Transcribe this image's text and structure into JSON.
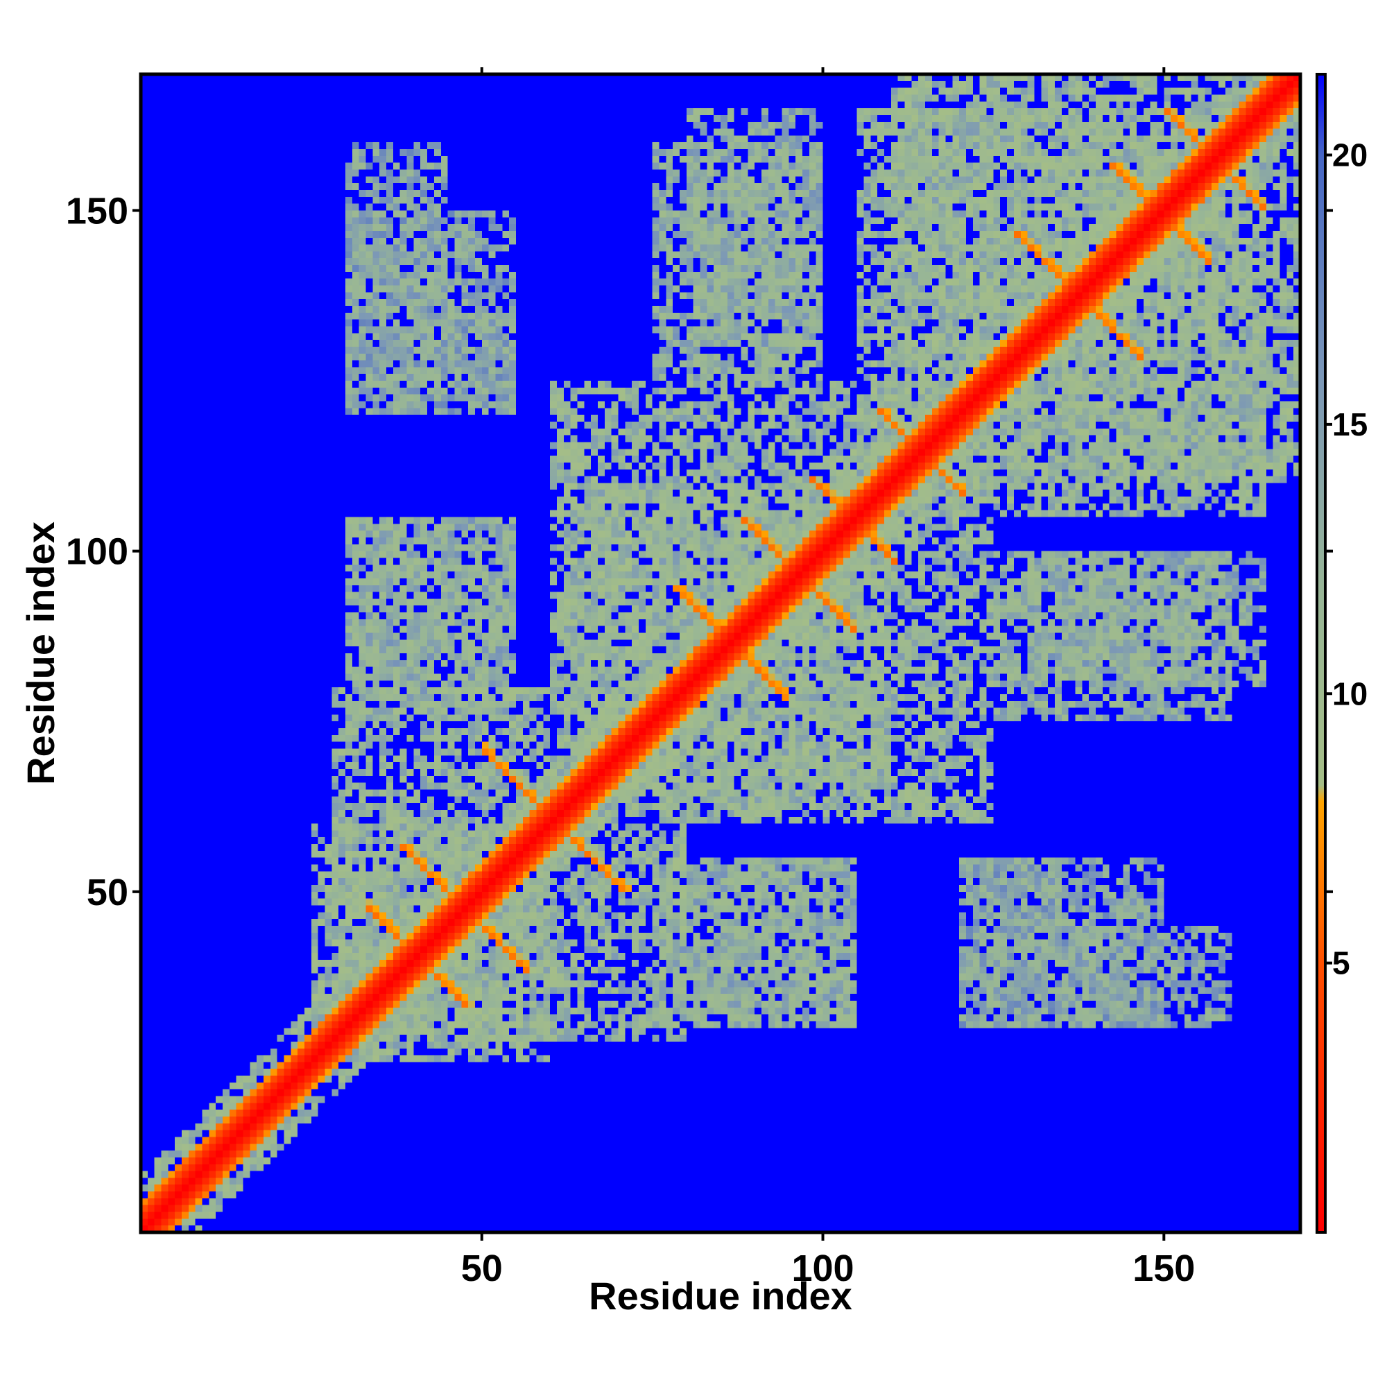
{
  "chart_data": {
    "type": "heatmap",
    "title": "",
    "xlabel": "Residue index",
    "ylabel": "Residue index",
    "xlim": [
      0,
      170
    ],
    "ylim": [
      0,
      170
    ],
    "x_ticks": [
      50,
      100,
      150
    ],
    "y_ticks": [
      50,
      100,
      150
    ],
    "x_tick_labels": [
      "50",
      "100",
      "150"
    ],
    "y_tick_labels": [
      "50",
      "100",
      "150"
    ],
    "colorbar": {
      "range": [
        0,
        21.5
      ],
      "ticks": [
        5,
        10,
        15,
        20
      ],
      "tick_labels": [
        "5",
        "10",
        "15",
        "20"
      ],
      "stops": [
        {
          "value": 0,
          "color": "#ff0000"
        },
        {
          "value": 5,
          "color": "#ff5000"
        },
        {
          "value": 8,
          "color": "#ffa500"
        },
        {
          "value": 8.3,
          "color": "#a5be87"
        },
        {
          "value": 12,
          "color": "#97b597"
        },
        {
          "value": 16,
          "color": "#7a96b8"
        },
        {
          "value": 20,
          "color": "#4666c4"
        },
        {
          "value": 21.5,
          "color": "#0000ff"
        }
      ],
      "background_color": "#0000ff"
    },
    "description_of_values": "pairwise residue distance (symmetric map); values at or above 21.5 shown as background",
    "diagonal": {
      "value": 0
    },
    "contact_features": [
      {
        "kind": "helix_band",
        "i_start": 40,
        "i_end": 47,
        "j_start": 33,
        "j_end": 40,
        "value": 6
      },
      {
        "kind": "helix_band",
        "i_start": 48,
        "i_end": 56,
        "j_start": 38,
        "j_end": 46,
        "value": 6
      },
      {
        "kind": "helix_band",
        "i_start": 62,
        "i_end": 70,
        "j_start": 50,
        "j_end": 58,
        "value": 6
      },
      {
        "kind": "helix_band",
        "i_start": 78,
        "i_end": 86,
        "j_start": 86,
        "j_end": 94,
        "value": 6
      },
      {
        "kind": "helix_band",
        "i_start": 88,
        "i_end": 96,
        "j_start": 96,
        "j_end": 104,
        "value": 6
      },
      {
        "kind": "helix_band",
        "i_start": 98,
        "i_end": 106,
        "j_start": 102,
        "j_end": 110,
        "value": 6
      },
      {
        "kind": "helix_band",
        "i_start": 108,
        "i_end": 116,
        "j_start": 112,
        "j_end": 120,
        "value": 6
      },
      {
        "kind": "helix_band",
        "i_start": 128,
        "i_end": 136,
        "j_start": 138,
        "j_end": 146,
        "value": 6
      },
      {
        "kind": "helix_band",
        "i_start": 142,
        "i_end": 150,
        "j_start": 148,
        "j_end": 156,
        "value": 6
      },
      {
        "kind": "helix_band",
        "i_start": 150,
        "i_end": 158,
        "j_start": 156,
        "j_end": 164,
        "value": 6
      },
      {
        "kind": "cluster",
        "x": [
          28,
          60
        ],
        "y": [
          25,
          80
        ],
        "value": 12
      },
      {
        "kind": "cluster",
        "x": [
          60,
          110
        ],
        "y": [
          62,
          125
        ],
        "value": 12
      },
      {
        "kind": "cluster",
        "x": [
          105,
          170
        ],
        "y": [
          110,
          165
        ],
        "value": 12
      },
      {
        "kind": "cluster",
        "x": [
          30,
          55
        ],
        "y": [
          80,
          105
        ],
        "value": 13
      },
      {
        "kind": "cluster",
        "x": [
          30,
          55
        ],
        "y": [
          120,
          150
        ],
        "value": 14
      },
      {
        "kind": "cluster",
        "x": [
          75,
          100
        ],
        "y": [
          125,
          160
        ],
        "value": 13
      },
      {
        "kind": "cluster",
        "x": [
          75,
          105
        ],
        "y": [
          30,
          55
        ],
        "value": 13
      },
      {
        "kind": "cluster",
        "x": [
          120,
          135
        ],
        "y": [
          30,
          55
        ],
        "value": 14
      },
      {
        "kind": "cluster",
        "x": [
          135,
          160
        ],
        "y": [
          30,
          45
        ],
        "value": 14
      },
      {
        "kind": "cluster",
        "x": [
          130,
          165
        ],
        "y": [
          80,
          100
        ],
        "value": 13
      }
    ],
    "grid": false,
    "legend": "colorbar-right"
  }
}
